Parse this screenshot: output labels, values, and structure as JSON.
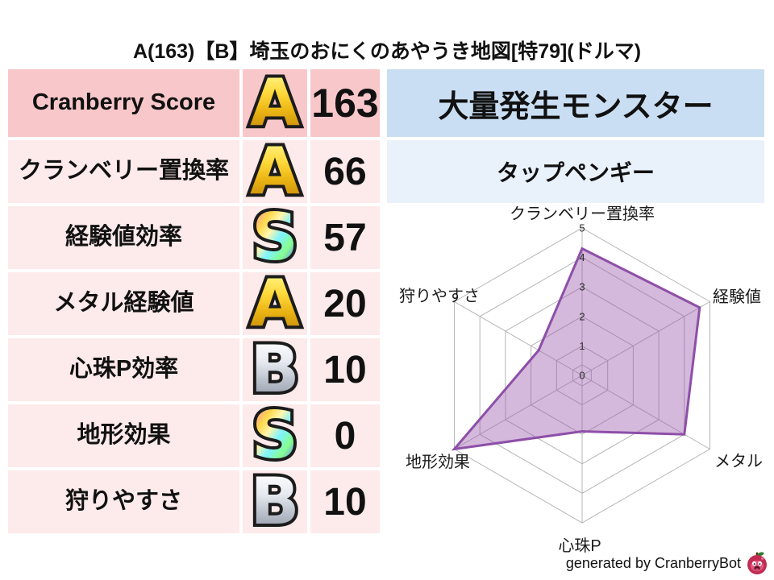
{
  "title": "A(163)【B】埼玉のおにくのあやうき地図[特79](ドルマ)",
  "stats_table": {
    "rows": [
      {
        "label": "Cranberry Score",
        "grade": "A",
        "grade_style": "gold",
        "value": "163"
      },
      {
        "label": "クランベリー置換率",
        "grade": "A",
        "grade_style": "gold",
        "value": "66"
      },
      {
        "label": "経験値効率",
        "grade": "S",
        "grade_style": "rainbow",
        "value": "57"
      },
      {
        "label": "メタル経験値",
        "grade": "A",
        "grade_style": "gold",
        "value": "20"
      },
      {
        "label": "心珠P効率",
        "grade": "B",
        "grade_style": "silver",
        "value": "10"
      },
      {
        "label": "地形効果",
        "grade": "S",
        "grade_style": "rainbow",
        "value": "0"
      },
      {
        "label": "狩りやすさ",
        "grade": "B",
        "grade_style": "silver",
        "value": "10"
      }
    ]
  },
  "monster_panel": {
    "header": "大量発生モンスター",
    "name": "タップペンギー"
  },
  "chart_data": {
    "type": "radar",
    "categories": [
      "クランベリー置換率",
      "経験値",
      "メタル",
      "心珠P",
      "地形効果",
      "狩りやすさ"
    ],
    "values": [
      4.3,
      4.6,
      4.0,
      1.9,
      5.0,
      1.7
    ],
    "rmin": 0,
    "rmax": 5,
    "tick_labels": [
      "0",
      "1",
      "2",
      "3",
      "4",
      "5"
    ],
    "grid": "on",
    "legend": "none",
    "fill_color": "rgba(152,88,172,0.42)",
    "line_color": "#8e4fa8",
    "grid_color": "#b5b5b5",
    "tick_color": "#2b2b2b",
    "label_color": "#1a1a1a"
  },
  "footer": {
    "credit": "generated by CranberryBot",
    "icon": "cranberrybot-logo"
  },
  "colors": {
    "row_highlight_bg": "#f8c7ca",
    "row_bg": "#fdeaea",
    "monster_header_bg": "#cadef3",
    "monster_name_bg": "#e9f1fb",
    "grade_gold": "#f2c117",
    "grade_silver": "#c3c8d2",
    "grade_rainbow_sample": "#7ef3ff",
    "text": "#111111"
  }
}
